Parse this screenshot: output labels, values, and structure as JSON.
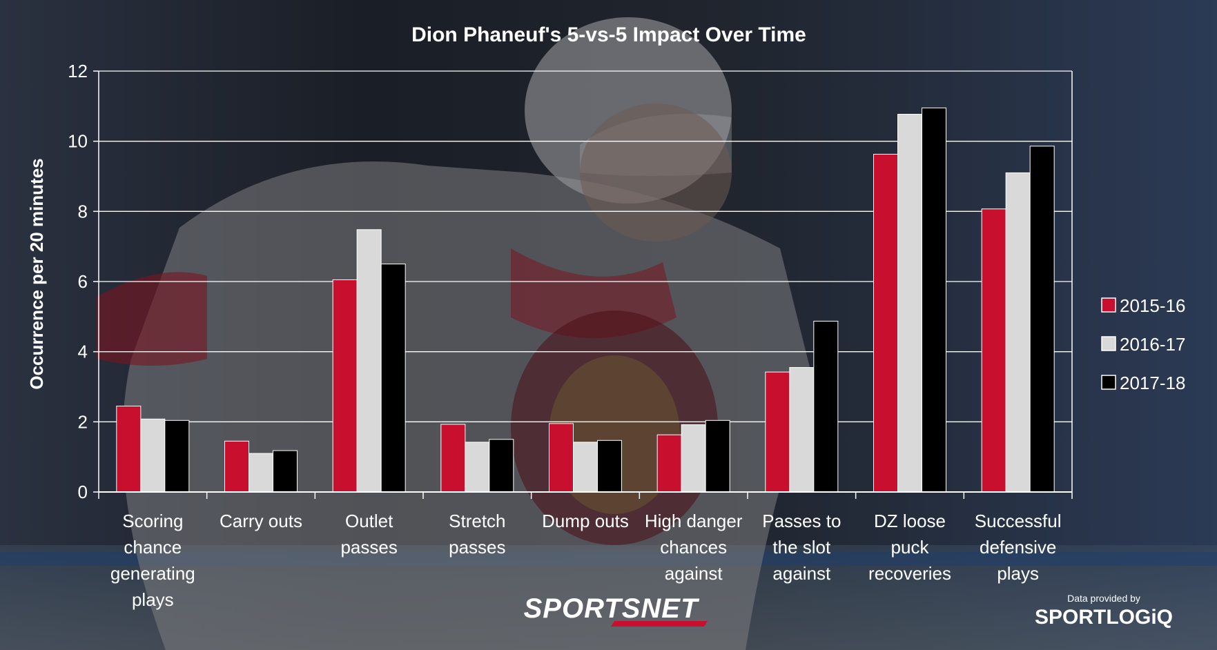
{
  "chart_data": {
    "type": "bar",
    "title": "Dion Phaneuf's 5-vs-5 Impact Over Time",
    "xlabel": "",
    "ylabel": "Occurrence per 20 minutes",
    "ylim": [
      0,
      12
    ],
    "yticks": [
      0,
      2,
      4,
      6,
      8,
      10,
      12
    ],
    "grid": true,
    "legend_position": "right",
    "categories": [
      [
        "Scoring",
        "chance",
        "generating",
        "plays"
      ],
      [
        "Carry outs"
      ],
      [
        "Outlet",
        "passes"
      ],
      [
        "Stretch",
        "passes"
      ],
      [
        "Dump outs"
      ],
      [
        "High danger",
        "chances",
        "against"
      ],
      [
        "Passes to",
        "the slot",
        "against"
      ],
      [
        "DZ loose",
        "puck",
        "recoveries"
      ],
      [
        "Successful",
        "defensive",
        "plays"
      ]
    ],
    "series": [
      {
        "name": "2015-16",
        "color": "#c8102e",
        "values": [
          2.45,
          1.45,
          6.05,
          1.93,
          1.95,
          1.63,
          3.42,
          9.63,
          8.07
        ]
      },
      {
        "name": "2016-17",
        "color": "#d9d9d9",
        "values": [
          2.08,
          1.1,
          7.48,
          1.42,
          1.42,
          1.92,
          3.55,
          10.77,
          9.1
        ]
      },
      {
        "name": "2017-18",
        "color": "#000000",
        "values": [
          2.04,
          1.18,
          6.5,
          1.5,
          1.47,
          2.04,
          4.87,
          10.95,
          9.86
        ]
      }
    ]
  },
  "branding": {
    "network": "SPORTSNET",
    "credit_prefix": "Data provided by",
    "credit_brand": "SPORTLOGiQ"
  }
}
